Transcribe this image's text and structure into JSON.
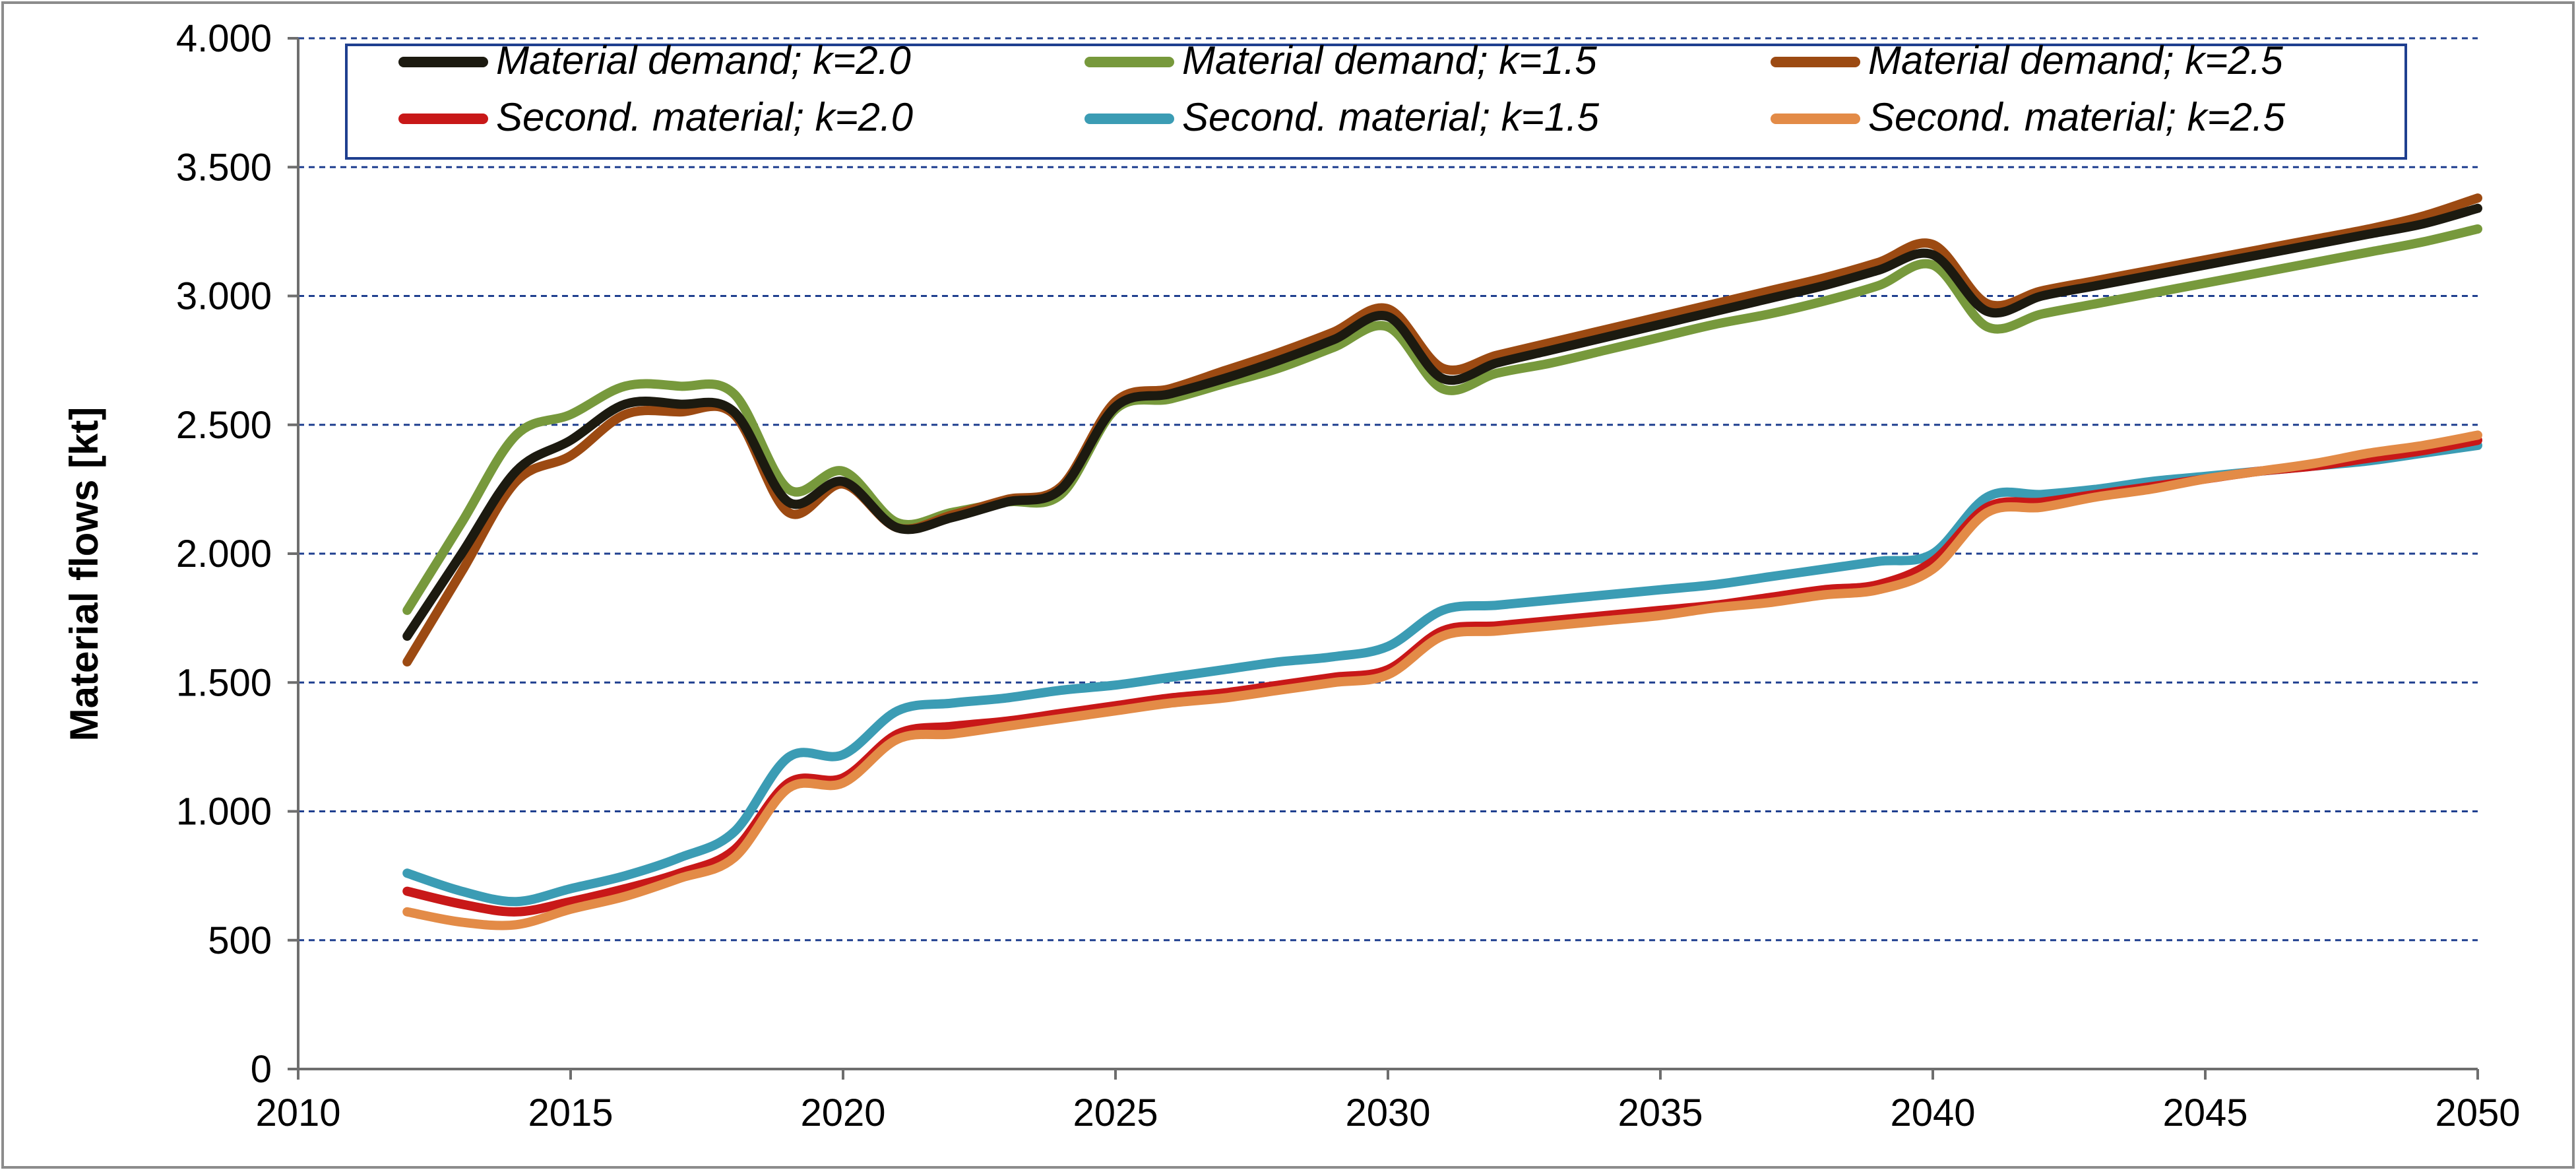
{
  "chart_data": {
    "type": "line",
    "title": "",
    "xlabel": "",
    "ylabel": "Material flows [kt]",
    "xlim": [
      2010,
      2050
    ],
    "ylim": [
      0,
      4000
    ],
    "x_ticks": [
      2010,
      2015,
      2020,
      2025,
      2030,
      2035,
      2040,
      2045,
      2050
    ],
    "y_ticks": [
      0,
      500,
      1000,
      1500,
      2000,
      2500,
      3000,
      3500,
      4000
    ],
    "x_tick_labels": [
      "2010",
      "2015",
      "2020",
      "2025",
      "2030",
      "2035",
      "2040",
      "2045",
      "2050"
    ],
    "y_tick_labels": [
      "0",
      "500",
      "1.000",
      "1.500",
      "2.000",
      "2.500",
      "3.000",
      "3.500",
      "4.000"
    ],
    "grid": "horizontal dashed",
    "legend_position": "top",
    "x": [
      2012,
      2013,
      2014,
      2015,
      2016,
      2017,
      2018,
      2019,
      2020,
      2021,
      2022,
      2023,
      2024,
      2025,
      2026,
      2027,
      2028,
      2029,
      2030,
      2031,
      2032,
      2033,
      2034,
      2035,
      2036,
      2037,
      2038,
      2039,
      2040,
      2041,
      2042,
      2043,
      2044,
      2045,
      2046,
      2047,
      2048,
      2049,
      2050
    ],
    "series": [
      {
        "name": "Material demand; k=2.0",
        "color": "#1c1a10",
        "values": [
          1680,
          2000,
          2320,
          2440,
          2580,
          2580,
          2550,
          2200,
          2280,
          2100,
          2140,
          2200,
          2250,
          2570,
          2620,
          2680,
          2750,
          2830,
          2920,
          2680,
          2740,
          2790,
          2840,
          2890,
          2940,
          2990,
          3040,
          3100,
          3160,
          2940,
          3000,
          3040,
          3080,
          3120,
          3160,
          3200,
          3240,
          3280,
          3340
        ]
      },
      {
        "name": "Material demand; k=1.5",
        "color": "#77993c",
        "values": [
          1780,
          2120,
          2460,
          2540,
          2650,
          2650,
          2620,
          2250,
          2320,
          2120,
          2160,
          2200,
          2230,
          2560,
          2600,
          2660,
          2720,
          2800,
          2880,
          2640,
          2700,
          2740,
          2790,
          2840,
          2890,
          2930,
          2980,
          3040,
          3120,
          2880,
          2930,
          2970,
          3010,
          3050,
          3090,
          3130,
          3170,
          3210,
          3260
        ]
      },
      {
        "name": "Material demand; k=2.5",
        "color": "#9c4a12",
        "values": [
          1580,
          1930,
          2280,
          2380,
          2540,
          2550,
          2540,
          2160,
          2270,
          2100,
          2150,
          2210,
          2260,
          2590,
          2640,
          2710,
          2780,
          2860,
          2950,
          2720,
          2770,
          2820,
          2870,
          2920,
          2970,
          3020,
          3070,
          3130,
          3200,
          2970,
          3020,
          3060,
          3100,
          3140,
          3180,
          3220,
          3260,
          3310,
          3380
        ]
      },
      {
        "name": "Second. material; k=2.0",
        "color": "#c81818",
        "values": [
          690,
          640,
          610,
          650,
          700,
          760,
          850,
          1110,
          1130,
          1300,
          1330,
          1350,
          1380,
          1410,
          1440,
          1460,
          1490,
          1520,
          1550,
          1700,
          1720,
          1740,
          1760,
          1780,
          1800,
          1830,
          1860,
          1880,
          1970,
          2180,
          2200,
          2230,
          2260,
          2290,
          2320,
          2340,
          2370,
          2400,
          2440
        ]
      },
      {
        "name": "Second. material; k=1.5",
        "color": "#3b9cb4",
        "values": [
          760,
          690,
          650,
          700,
          750,
          820,
          920,
          1210,
          1220,
          1390,
          1420,
          1440,
          1470,
          1490,
          1520,
          1550,
          1580,
          1600,
          1640,
          1780,
          1800,
          1820,
          1840,
          1860,
          1880,
          1910,
          1940,
          1970,
          2000,
          2220,
          2230,
          2250,
          2280,
          2300,
          2320,
          2340,
          2360,
          2390,
          2420
        ]
      },
      {
        "name": "Second. material; k=2.5",
        "color": "#e38b47",
        "values": [
          610,
          570,
          560,
          620,
          670,
          740,
          820,
          1090,
          1110,
          1280,
          1300,
          1330,
          1360,
          1390,
          1420,
          1440,
          1470,
          1500,
          1530,
          1680,
          1700,
          1720,
          1740,
          1760,
          1790,
          1810,
          1840,
          1860,
          1940,
          2160,
          2180,
          2220,
          2250,
          2290,
          2320,
          2350,
          2390,
          2420,
          2460
        ]
      }
    ]
  }
}
